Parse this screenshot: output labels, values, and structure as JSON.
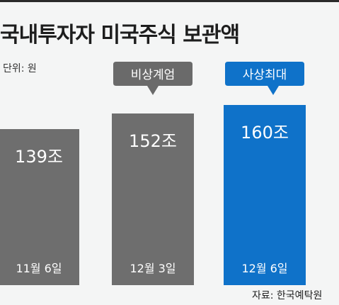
{
  "title": "국내투자자 미국주식 보관액",
  "unit_label": "단위: 원",
  "source": "자료: 한국예탁원",
  "colors": {
    "bar_gray": "#6e6e6e",
    "bar_highlight": "#0f72c9",
    "callout_gray": "#6a6a6a",
    "callout_highlight": "#0f72c9",
    "background": "#f4f5f5",
    "text_light": "#ffffff"
  },
  "chart_data": {
    "type": "bar",
    "title": "국내투자자 미국주식 보관액",
    "unit": "단위: 원",
    "categories": [
      "11월 6일",
      "12월 3일",
      "12월 6일"
    ],
    "values": [
      139,
      152,
      160
    ],
    "value_labels": [
      "139조",
      "152조",
      "160조"
    ],
    "annotations": [
      {
        "category": "12월 3일",
        "text": "비상계엄"
      },
      {
        "category": "12월 6일",
        "text": "사상최대"
      }
    ],
    "highlight": "12월 6일",
    "ylim": [
      0,
      160
    ],
    "grid": false,
    "legend": "none"
  }
}
